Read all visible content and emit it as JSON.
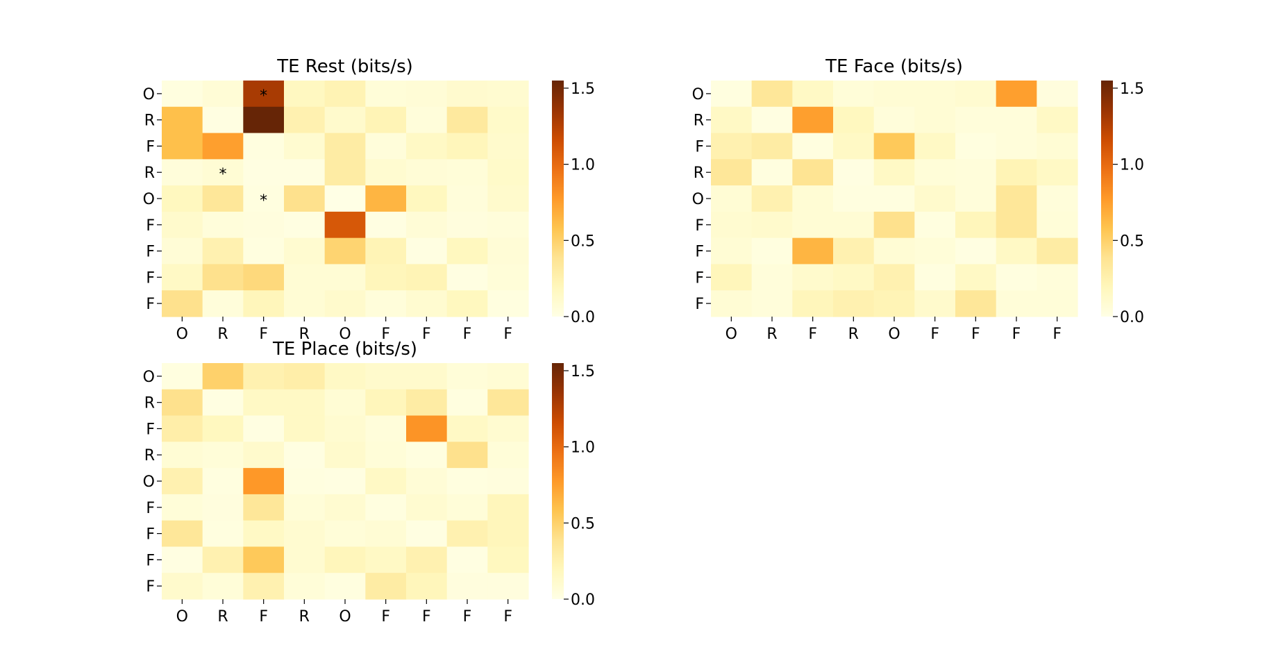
{
  "chart_data": [
    {
      "type": "heatmap",
      "title": "TE Rest (bits/s)",
      "x_tick_labels": [
        "O",
        "R",
        "F",
        "R",
        "O",
        "F",
        "F",
        "F",
        "F"
      ],
      "y_tick_labels": [
        "O",
        "R",
        "F",
        "R",
        "O",
        "F",
        "F",
        "F",
        "F"
      ],
      "colorbar": {
        "ticks": [
          "0.0",
          "0.5",
          "1.0",
          "1.5"
        ],
        "range": [
          0,
          1.55
        ],
        "colormap": "YlOrBr"
      },
      "values": [
        [
          0.03,
          0.07,
          1.3,
          0.17,
          0.23,
          0.06,
          0.07,
          0.11,
          0.1
        ],
        [
          0.6,
          0.02,
          1.55,
          0.25,
          0.12,
          0.22,
          0.05,
          0.33,
          0.13
        ],
        [
          0.6,
          0.75,
          0.03,
          0.1,
          0.3,
          0.05,
          0.15,
          0.2,
          0.12
        ],
        [
          0.05,
          0.08,
          0.02,
          0.02,
          0.3,
          0.1,
          0.07,
          0.06,
          0.13
        ],
        [
          0.18,
          0.35,
          0.03,
          0.4,
          0.0,
          0.65,
          0.18,
          0.05,
          0.12
        ],
        [
          0.12,
          0.05,
          0.04,
          0.02,
          1.1,
          0.02,
          0.07,
          0.04,
          0.05
        ],
        [
          0.07,
          0.25,
          0.03,
          0.1,
          0.48,
          0.22,
          0.02,
          0.18,
          0.07
        ],
        [
          0.15,
          0.4,
          0.45,
          0.08,
          0.08,
          0.2,
          0.22,
          0.02,
          0.06
        ],
        [
          0.4,
          0.05,
          0.2,
          0.08,
          0.12,
          0.05,
          0.1,
          0.18,
          0.03
        ]
      ],
      "annotations": [
        {
          "row": 0,
          "col": 2,
          "text": "*"
        },
        {
          "row": 3,
          "col": 1,
          "text": "*"
        },
        {
          "row": 4,
          "col": 2,
          "text": "*"
        }
      ]
    },
    {
      "type": "heatmap",
      "title": "TE Face (bits/s)",
      "x_tick_labels": [
        "O",
        "R",
        "F",
        "R",
        "O",
        "F",
        "F",
        "F",
        "F"
      ],
      "y_tick_labels": [
        "O",
        "R",
        "F",
        "R",
        "O",
        "F",
        "F",
        "F",
        "F"
      ],
      "colorbar": {
        "ticks": [
          "0.0",
          "0.5",
          "1.0",
          "1.5"
        ],
        "range": [
          0,
          1.55
        ],
        "colormap": "YlOrBr"
      },
      "values": [
        [
          0.03,
          0.35,
          0.15,
          0.06,
          0.08,
          0.08,
          0.1,
          0.75,
          0.04
        ],
        [
          0.15,
          0.02,
          0.75,
          0.18,
          0.05,
          0.08,
          0.05,
          0.05,
          0.15
        ],
        [
          0.25,
          0.3,
          0.03,
          0.15,
          0.55,
          0.15,
          0.03,
          0.05,
          0.08
        ],
        [
          0.35,
          0.03,
          0.38,
          0.02,
          0.15,
          0.06,
          0.05,
          0.22,
          0.15
        ],
        [
          0.08,
          0.25,
          0.08,
          0.03,
          0.03,
          0.12,
          0.05,
          0.35,
          0.05
        ],
        [
          0.1,
          0.12,
          0.08,
          0.08,
          0.4,
          0.03,
          0.2,
          0.35,
          0.06
        ],
        [
          0.08,
          0.03,
          0.65,
          0.25,
          0.08,
          0.06,
          0.02,
          0.15,
          0.3
        ],
        [
          0.2,
          0.05,
          0.12,
          0.15,
          0.25,
          0.03,
          0.15,
          0.03,
          0.05
        ],
        [
          0.08,
          0.05,
          0.2,
          0.25,
          0.22,
          0.12,
          0.35,
          0.06,
          0.06
        ]
      ],
      "annotations": []
    },
    {
      "type": "heatmap",
      "title": "TE Place (bits/s)",
      "x_tick_labels": [
        "O",
        "R",
        "F",
        "R",
        "O",
        "F",
        "F",
        "F",
        "F"
      ],
      "y_tick_labels": [
        "O",
        "R",
        "F",
        "R",
        "O",
        "F",
        "F",
        "F",
        "F"
      ],
      "colorbar": {
        "ticks": [
          "0.0",
          "0.5",
          "1.0",
          "1.5"
        ],
        "range": [
          0,
          1.55
        ],
        "colormap": "YlOrBr"
      },
      "values": [
        [
          0.03,
          0.5,
          0.25,
          0.28,
          0.15,
          0.12,
          0.12,
          0.06,
          0.08
        ],
        [
          0.4,
          0.02,
          0.15,
          0.15,
          0.08,
          0.2,
          0.3,
          0.03,
          0.35
        ],
        [
          0.28,
          0.18,
          0.02,
          0.15,
          0.1,
          0.05,
          0.8,
          0.15,
          0.1
        ],
        [
          0.08,
          0.06,
          0.12,
          0.02,
          0.12,
          0.06,
          0.03,
          0.4,
          0.06
        ],
        [
          0.25,
          0.03,
          0.78,
          0.03,
          0.02,
          0.15,
          0.07,
          0.03,
          0.04
        ],
        [
          0.06,
          0.04,
          0.35,
          0.06,
          0.1,
          0.03,
          0.1,
          0.06,
          0.2
        ],
        [
          0.35,
          0.03,
          0.15,
          0.1,
          0.06,
          0.08,
          0.02,
          0.25,
          0.2
        ],
        [
          0.02,
          0.25,
          0.55,
          0.1,
          0.2,
          0.15,
          0.25,
          0.02,
          0.18
        ],
        [
          0.12,
          0.06,
          0.25,
          0.06,
          0.03,
          0.3,
          0.2,
          0.04,
          0.04
        ]
      ],
      "annotations": []
    }
  ]
}
